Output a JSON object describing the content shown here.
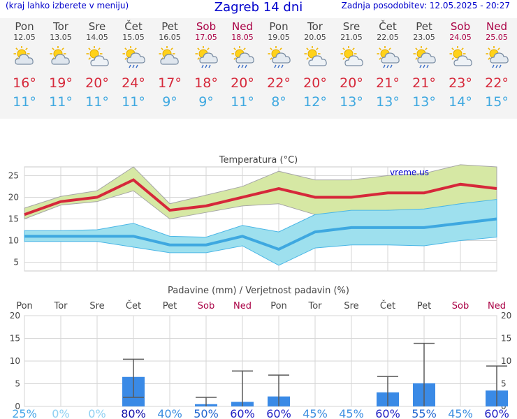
{
  "header": {
    "note": "(kraj lahko izberete v meniju)",
    "title": "Zagreb 14 dni",
    "updated": "Zadnja posodobitev: 12.05.2025 - 20:27"
  },
  "days": [
    {
      "name": "Pon",
      "date": "12.05",
      "weekend": false,
      "icon": "partly-cloudy-icon",
      "tmax": "16°",
      "tmin": "11°"
    },
    {
      "name": "Tor",
      "date": "13.05",
      "weekend": false,
      "icon": "partly-cloudy-icon",
      "tmax": "19°",
      "tmin": "11°"
    },
    {
      "name": "Sre",
      "date": "14.05",
      "weekend": false,
      "icon": "sun-cloud-icon",
      "tmax": "20°",
      "tmin": "11°"
    },
    {
      "name": "Čet",
      "date": "15.05",
      "weekend": false,
      "icon": "sun-cloud-rain-icon",
      "tmax": "24°",
      "tmin": "11°"
    },
    {
      "name": "Pet",
      "date": "16.05",
      "weekend": false,
      "icon": "partly-cloudy-icon",
      "tmax": "17°",
      "tmin": "9°"
    },
    {
      "name": "Sob",
      "date": "17.05",
      "weekend": true,
      "icon": "sun-cloud-rain-icon",
      "tmax": "18°",
      "tmin": "9°"
    },
    {
      "name": "Ned",
      "date": "18.05",
      "weekend": true,
      "icon": "sun-cloud-rain-icon",
      "tmax": "20°",
      "tmin": "11°"
    },
    {
      "name": "Pon",
      "date": "19.05",
      "weekend": false,
      "icon": "sun-cloud-rain-icon",
      "tmax": "22°",
      "tmin": "8°"
    },
    {
      "name": "Tor",
      "date": "20.05",
      "weekend": false,
      "icon": "sun-cloud-icon",
      "tmax": "20°",
      "tmin": "12°"
    },
    {
      "name": "Sre",
      "date": "21.05",
      "weekend": false,
      "icon": "sun-cloud-icon",
      "tmax": "20°",
      "tmin": "13°"
    },
    {
      "name": "Čet",
      "date": "22.05",
      "weekend": false,
      "icon": "sun-cloud-rain-icon",
      "tmax": "21°",
      "tmin": "13°"
    },
    {
      "name": "Pet",
      "date": "23.05",
      "weekend": false,
      "icon": "sun-cloud-rain-icon",
      "tmax": "21°",
      "tmin": "13°"
    },
    {
      "name": "Sob",
      "date": "24.05",
      "weekend": true,
      "icon": "sun-cloud-icon",
      "tmax": "23°",
      "tmin": "14°"
    },
    {
      "name": "Ned",
      "date": "25.05",
      "weekend": true,
      "icon": "sun-cloud-rain-icon",
      "tmax": "22°",
      "tmin": "15°"
    }
  ],
  "colors": {
    "max_line": "#d6283a",
    "max_band": "#d6e8a4",
    "min_line": "#3ea8e0",
    "min_band": "#9ee0ee",
    "precip_bar": "#3a8ae6",
    "weekday_label": "#444444",
    "weekend_label": "#aa0044"
  },
  "chart_data": [
    {
      "type": "line",
      "title": "Temperatura (°C)",
      "watermark": "vreme.us",
      "x": [
        "12.05",
        "13.05",
        "14.05",
        "15.05",
        "16.05",
        "17.05",
        "18.05",
        "19.05",
        "20.05",
        "21.05",
        "22.05",
        "23.05",
        "24.05",
        "25.05"
      ],
      "ylim": [
        3,
        27
      ],
      "yticks": [
        "5",
        "10",
        "15",
        "20",
        "25"
      ],
      "grid": true,
      "series": [
        {
          "values": [
            16,
            19,
            20,
            24,
            17,
            18,
            20,
            22,
            20,
            20,
            21,
            21,
            23,
            22
          ],
          "band_high": [
            17.5,
            20.2,
            21.5,
            27,
            18.5,
            20.5,
            22.5,
            26,
            24,
            24,
            25,
            25.5,
            27.5,
            27
          ],
          "band_low": [
            15,
            18.2,
            19,
            21.5,
            15,
            16.5,
            18,
            18.5,
            16,
            16,
            17,
            17.2,
            18.5,
            17.8
          ]
        },
        {
          "values": [
            11,
            11,
            11,
            11,
            9,
            9,
            11,
            8,
            12,
            13,
            13,
            13,
            14,
            15
          ],
          "band_high": [
            12.3,
            12.3,
            12.5,
            14,
            11,
            10.8,
            13.5,
            12,
            16,
            17,
            17,
            17.3,
            18.5,
            19.5
          ],
          "band_low": [
            9.8,
            9.8,
            9.8,
            8.5,
            7.2,
            7.2,
            8.8,
            4.3,
            8.3,
            9,
            9,
            8.8,
            10,
            10.8
          ]
        }
      ]
    },
    {
      "type": "bar",
      "title": "Padavine (mm) / Verjetnost padavin (%)",
      "categories": [
        "Pon",
        "Tor",
        "Sre",
        "Čet",
        "Pet",
        "Sob",
        "Ned",
        "Pon",
        "Tor",
        "Sre",
        "Čet",
        "Pet",
        "Sob",
        "Ned"
      ],
      "weekend": [
        false,
        false,
        false,
        false,
        false,
        true,
        true,
        false,
        false,
        false,
        false,
        false,
        true,
        true
      ],
      "ylim": [
        0,
        20
      ],
      "yticks": [
        "0",
        "5",
        "10",
        "15",
        "20"
      ],
      "grid": true,
      "values": [
        0,
        0,
        0,
        6.5,
        0,
        0.5,
        1,
        2.2,
        0,
        0,
        3.1,
        5.1,
        0,
        3.5
      ],
      "error_low": [
        null,
        null,
        null,
        2,
        null,
        0,
        0,
        0,
        null,
        null,
        0,
        0,
        null,
        0
      ],
      "error_high": [
        null,
        null,
        null,
        10.4,
        null,
        2,
        7.8,
        6.9,
        null,
        null,
        6.6,
        13.9,
        null,
        8.9
      ],
      "probability": [
        "25%",
        "0%",
        "0%",
        "80%",
        "40%",
        "50%",
        "60%",
        "60%",
        "45%",
        "45%",
        "60%",
        "55%",
        "45%",
        "60%"
      ],
      "probability_level": [
        25,
        0,
        0,
        80,
        40,
        50,
        60,
        60,
        45,
        45,
        60,
        55,
        45,
        60
      ]
    }
  ]
}
